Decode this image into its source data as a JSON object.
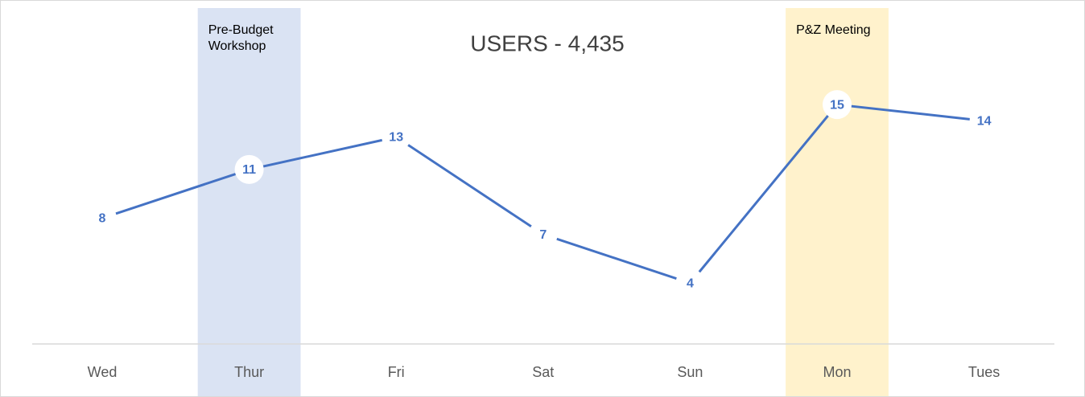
{
  "chart_data": {
    "type": "line",
    "title": "USERS - 4,435",
    "categories": [
      "Wed",
      "Thur",
      "Fri",
      "Sat",
      "Sun",
      "Mon",
      "Tues"
    ],
    "values": [
      8,
      11,
      13,
      7,
      4,
      15,
      14
    ],
    "color": "#4472c4",
    "ylim": [
      0,
      21
    ],
    "annotations": [
      {
        "text": "Pre-Budget Workshop",
        "category": "Thur",
        "color": "#dae3f3"
      },
      {
        "text": "P&Z Meeting",
        "category": "Mon",
        "color": "#fff2cc"
      }
    ]
  }
}
